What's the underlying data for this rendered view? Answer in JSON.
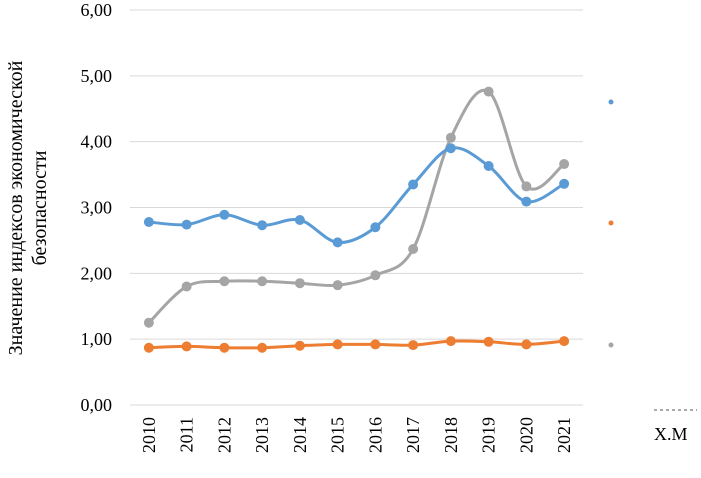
{
  "chart_data": {
    "type": "line",
    "categories": [
      "2010",
      "2011",
      "2012",
      "2013",
      "2014",
      "2015",
      "2016",
      "2017",
      "2018",
      "2019",
      "2020",
      "2021"
    ],
    "ylabel": "Значение индексов экономической безопасности",
    "ylim": [
      0,
      6
    ],
    "yticks": [
      "0,00",
      "1,00",
      "2,00",
      "3,00",
      "4,00",
      "5,00",
      "6,00"
    ],
    "ytick_values": [
      0,
      1,
      2,
      3,
      4,
      5,
      6
    ],
    "grid": true,
    "legend_placement": "right",
    "series": [
      {
        "color": "#5B9BD5",
        "values": [
          2.78,
          2.74,
          2.89,
          2.73,
          2.81,
          2.47,
          2.7,
          3.35,
          3.9,
          3.63,
          3.09,
          3.36
        ]
      },
      {
        "color": "#ED7D31",
        "values": [
          0.87,
          0.89,
          0.87,
          0.87,
          0.9,
          0.92,
          0.92,
          0.91,
          0.97,
          0.96,
          0.92,
          0.97
        ]
      },
      {
        "color": "#A5A5A5",
        "values": [
          1.25,
          1.8,
          1.88,
          1.88,
          1.85,
          1.82,
          1.97,
          2.37,
          4.06,
          4.76,
          3.32,
          3.66
        ]
      }
    ],
    "legend": {
      "partial_text": "X.M"
    }
  }
}
